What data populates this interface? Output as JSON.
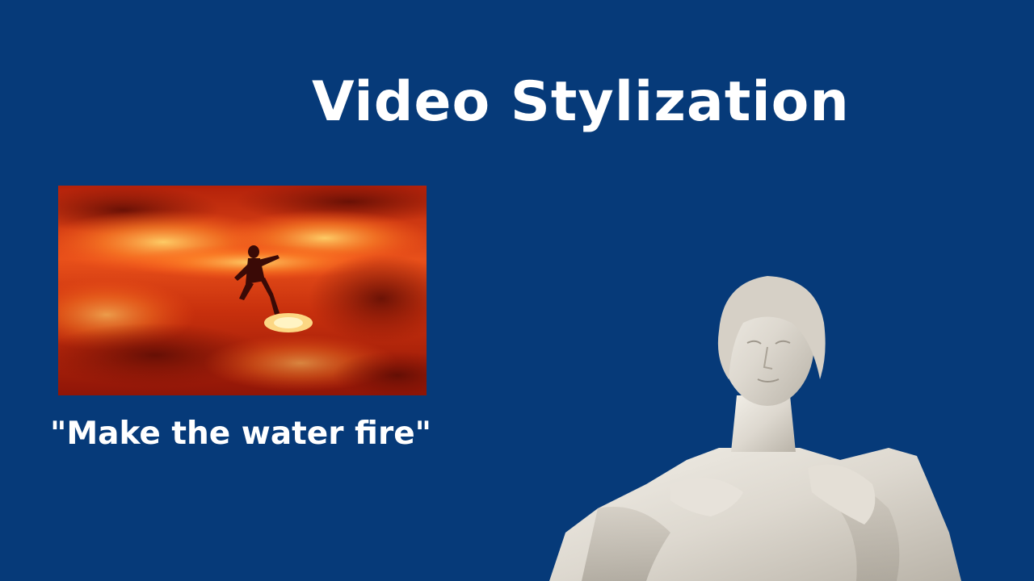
{
  "slide": {
    "title": "Video Stylization",
    "caption": "\"Make the water fire\"",
    "background_color": "#063a79",
    "text_color": "#ffffff"
  },
  "media": {
    "video_frame_icon": "fire-wave-surfer-image",
    "statue_icon": "marble-statue-image"
  }
}
